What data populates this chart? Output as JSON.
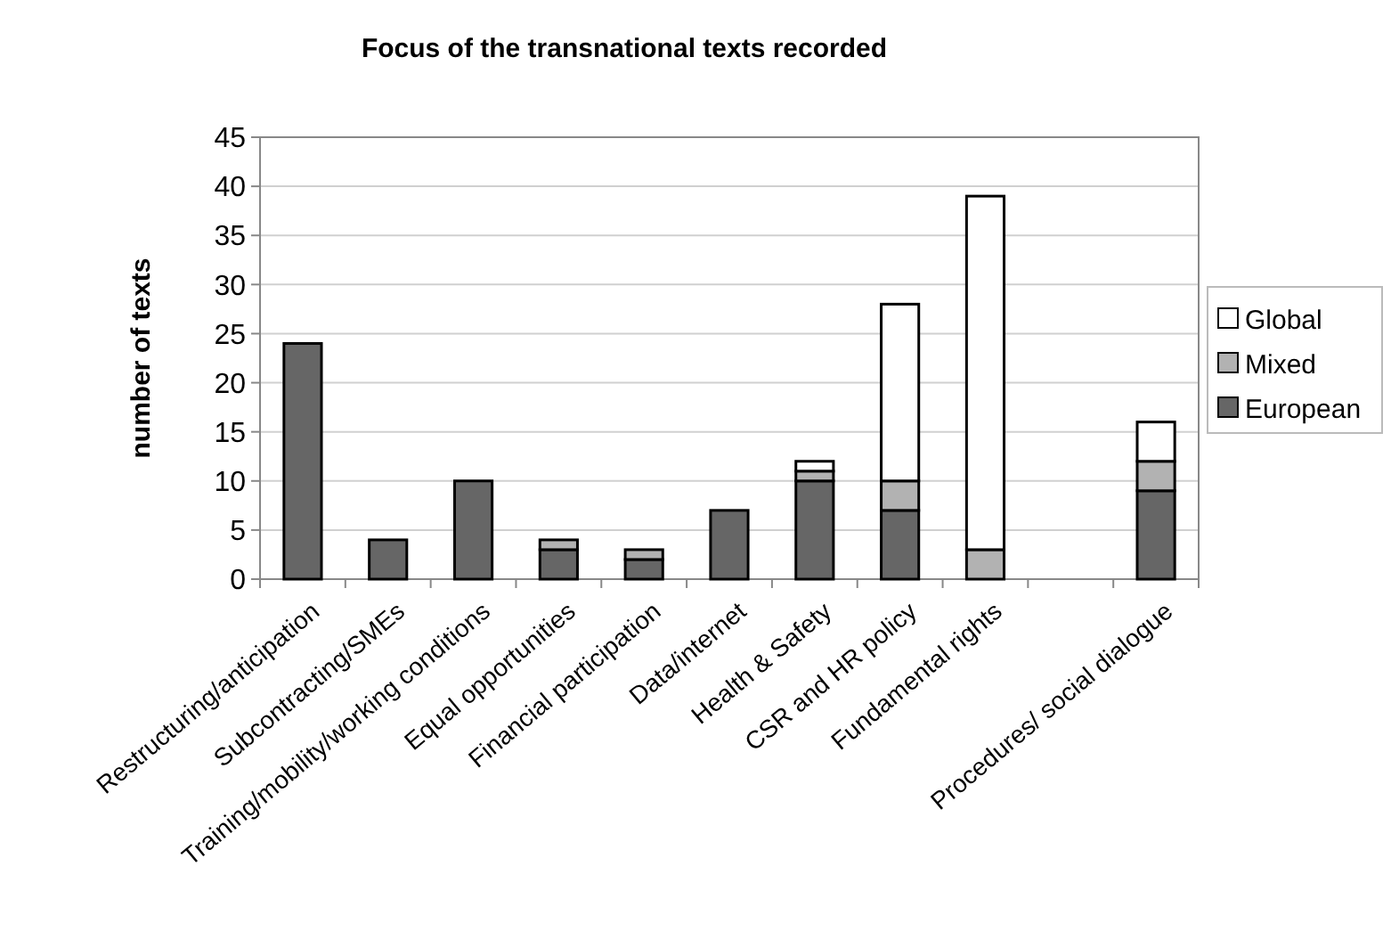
{
  "chart_data": {
    "type": "bar",
    "title": "Focus of the transnational texts recorded",
    "ylabel": "number of texts",
    "categories": [
      "Restructuring/anticipation",
      "Subcontracting/SMEs",
      "Training/mobility/working conditions",
      "Equal opportunities",
      "Financial participation",
      "Data/internet",
      "Health & Safety",
      "CSR and HR policy",
      "Fundamental rights",
      null,
      "Procedures/ social dialogue"
    ],
    "series": [
      {
        "name": "European",
        "color": "#666666",
        "values": [
          24,
          4,
          10,
          3,
          2,
          7,
          10,
          7,
          0,
          null,
          9
        ]
      },
      {
        "name": "Mixed",
        "color": "#b2b2b2",
        "values": [
          0,
          0,
          0,
          1,
          1,
          0,
          1,
          3,
          3,
          null,
          3
        ]
      },
      {
        "name": "Global",
        "color": "#ffffff",
        "values": [
          0,
          0,
          0,
          0,
          0,
          0,
          1,
          18,
          36,
          null,
          4
        ]
      }
    ],
    "stacked": true,
    "ylim": [
      0,
      45
    ],
    "yticks": [
      0,
      5,
      10,
      15,
      20,
      25,
      30,
      35,
      40,
      45
    ],
    "grid": "y",
    "legend": "right"
  }
}
